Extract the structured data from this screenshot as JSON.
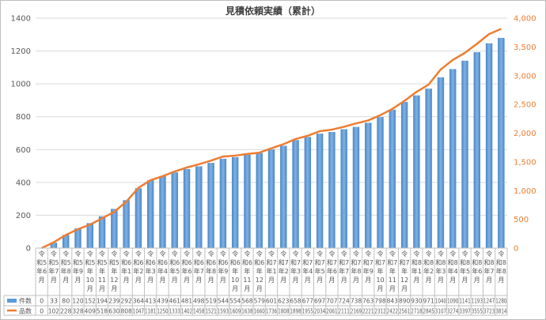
{
  "chart_data": {
    "type": "bar+line",
    "title": "見積依頼実績（累計）",
    "categories": [
      "令和5年6月",
      "令和5年7月",
      "令和5年8月",
      "令和5年9月",
      "令和5年10月",
      "令和5年11月",
      "令和5年12月",
      "令和6年1月",
      "令和6年2月",
      "令和6年3月",
      "令和6年4月",
      "令和6年5月",
      "令和6年6月",
      "令和6年7月",
      "令和6年8月",
      "令和6年9月",
      "令和6年10月",
      "令和6年11月",
      "令和6年12月",
      "令和7年1月",
      "令和7年2月",
      "令和7年3月",
      "令和7年4月",
      "令和7年5月",
      "令和7年6月",
      "令和7年7月",
      "令和7年8月",
      "令和7年9月",
      "令和7年10月",
      "令和7年11月",
      "令和7年12月",
      "令和8年1月",
      "令和8年2月",
      "令和8年3月",
      "令和8年4月",
      "令和8年5月",
      "令和8年6月",
      "令和8年7月",
      "令和8年8月"
    ],
    "category_label_lines": [
      [
        "令",
        "和5",
        "年6",
        "月"
      ],
      [
        "令",
        "和5",
        "年7",
        "月"
      ],
      [
        "令",
        "和5",
        "年8",
        "月"
      ],
      [
        "令",
        "和5",
        "年9",
        "月"
      ],
      [
        "令",
        "和5",
        "年",
        "10",
        "月"
      ],
      [
        "令",
        "和5",
        "年",
        "11",
        "月"
      ],
      [
        "令",
        "和5",
        "年",
        "12",
        "月"
      ],
      [
        "令",
        "和6",
        "年1",
        "月"
      ],
      [
        "令",
        "和6",
        "年2",
        "月"
      ],
      [
        "令",
        "和6",
        "年3",
        "月"
      ],
      [
        "令",
        "和6",
        "年4",
        "月"
      ],
      [
        "令",
        "和6",
        "年5",
        "月"
      ],
      [
        "令",
        "和6",
        "年6",
        "月"
      ],
      [
        "令",
        "和6",
        "年7",
        "月"
      ],
      [
        "令",
        "和6",
        "年8",
        "月"
      ],
      [
        "令",
        "和6",
        "年9",
        "月"
      ],
      [
        "令",
        "和6",
        "年",
        "10",
        "月"
      ],
      [
        "令",
        "和6",
        "年",
        "11",
        "月"
      ],
      [
        "令",
        "和6",
        "年",
        "12",
        "月"
      ],
      [
        "令",
        "和7",
        "年1",
        "月"
      ],
      [
        "令",
        "和7",
        "年2",
        "月"
      ],
      [
        "令",
        "和7",
        "年3",
        "月"
      ],
      [
        "令",
        "和7",
        "年4",
        "月"
      ],
      [
        "令",
        "和7",
        "年5",
        "月"
      ],
      [
        "令",
        "和7",
        "年6",
        "月"
      ],
      [
        "令",
        "和7",
        "年7",
        "月"
      ],
      [
        "令",
        "和7",
        "年8",
        "月"
      ],
      [
        "令",
        "和7",
        "年9",
        "月"
      ],
      [
        "令",
        "和7",
        "年",
        "10",
        "月"
      ],
      [
        "令",
        "和7",
        "年",
        "11",
        "月"
      ],
      [
        "令",
        "和7",
        "年",
        "12",
        "月"
      ],
      [
        "令",
        "和8",
        "年1",
        "月"
      ],
      [
        "令",
        "和8",
        "年2",
        "月"
      ],
      [
        "令",
        "和8",
        "年3",
        "月"
      ],
      [
        "令",
        "和8",
        "年4",
        "月"
      ],
      [
        "令",
        "和8",
        "年5",
        "月"
      ],
      [
        "令",
        "和8",
        "年6",
        "月"
      ],
      [
        "令",
        "和8",
        "年7",
        "月"
      ],
      [
        "令",
        "和8",
        "年8",
        "月"
      ]
    ],
    "series": [
      {
        "name": "件数",
        "type": "bar",
        "axis": "left",
        "color": "#5b9bd5",
        "values": [
          0,
          33,
          80,
          120,
          152,
          194,
          239,
          292,
          364,
          413,
          439,
          461,
          481,
          498,
          519,
          544,
          554,
          568,
          579,
          601,
          623,
          658,
          677,
          697,
          707,
          724,
          738,
          763,
          798,
          843,
          890,
          930,
          971,
          1040,
          1090,
          1141,
          1193,
          1247,
          1280
        ]
      },
      {
        "name": "品数",
        "type": "line",
        "axis": "right",
        "color": "#ed7d31",
        "values": [
          0,
          102,
          228,
          328,
          409,
          518,
          630,
          808,
          1047,
          1181,
          1250,
          1333,
          1402,
          1458,
          1521,
          1593,
          1609,
          1638,
          1660,
          1736,
          1808,
          1898,
          1955,
          2034,
          2061,
          2111,
          2169,
          2221,
          2312,
          2422,
          2561,
          2718,
          2845,
          3107,
          3274,
          3397,
          3555,
          3723,
          3814
        ]
      }
    ],
    "ylim_left": [
      0,
      1400
    ],
    "yticks_left": [
      0,
      200,
      400,
      600,
      800,
      1000,
      1200,
      1400
    ],
    "ylim_right": [
      0,
      4000
    ],
    "yticks_right": [
      0,
      500,
      1000,
      1500,
      2000,
      2500,
      3000,
      3500,
      4000
    ],
    "yticks_right_labels": [
      "0",
      "500",
      "1,000",
      "1,500",
      "2,000",
      "2,500",
      "3,000",
      "3,500",
      "4,000"
    ],
    "grid": true,
    "legend_position": "data-table"
  }
}
